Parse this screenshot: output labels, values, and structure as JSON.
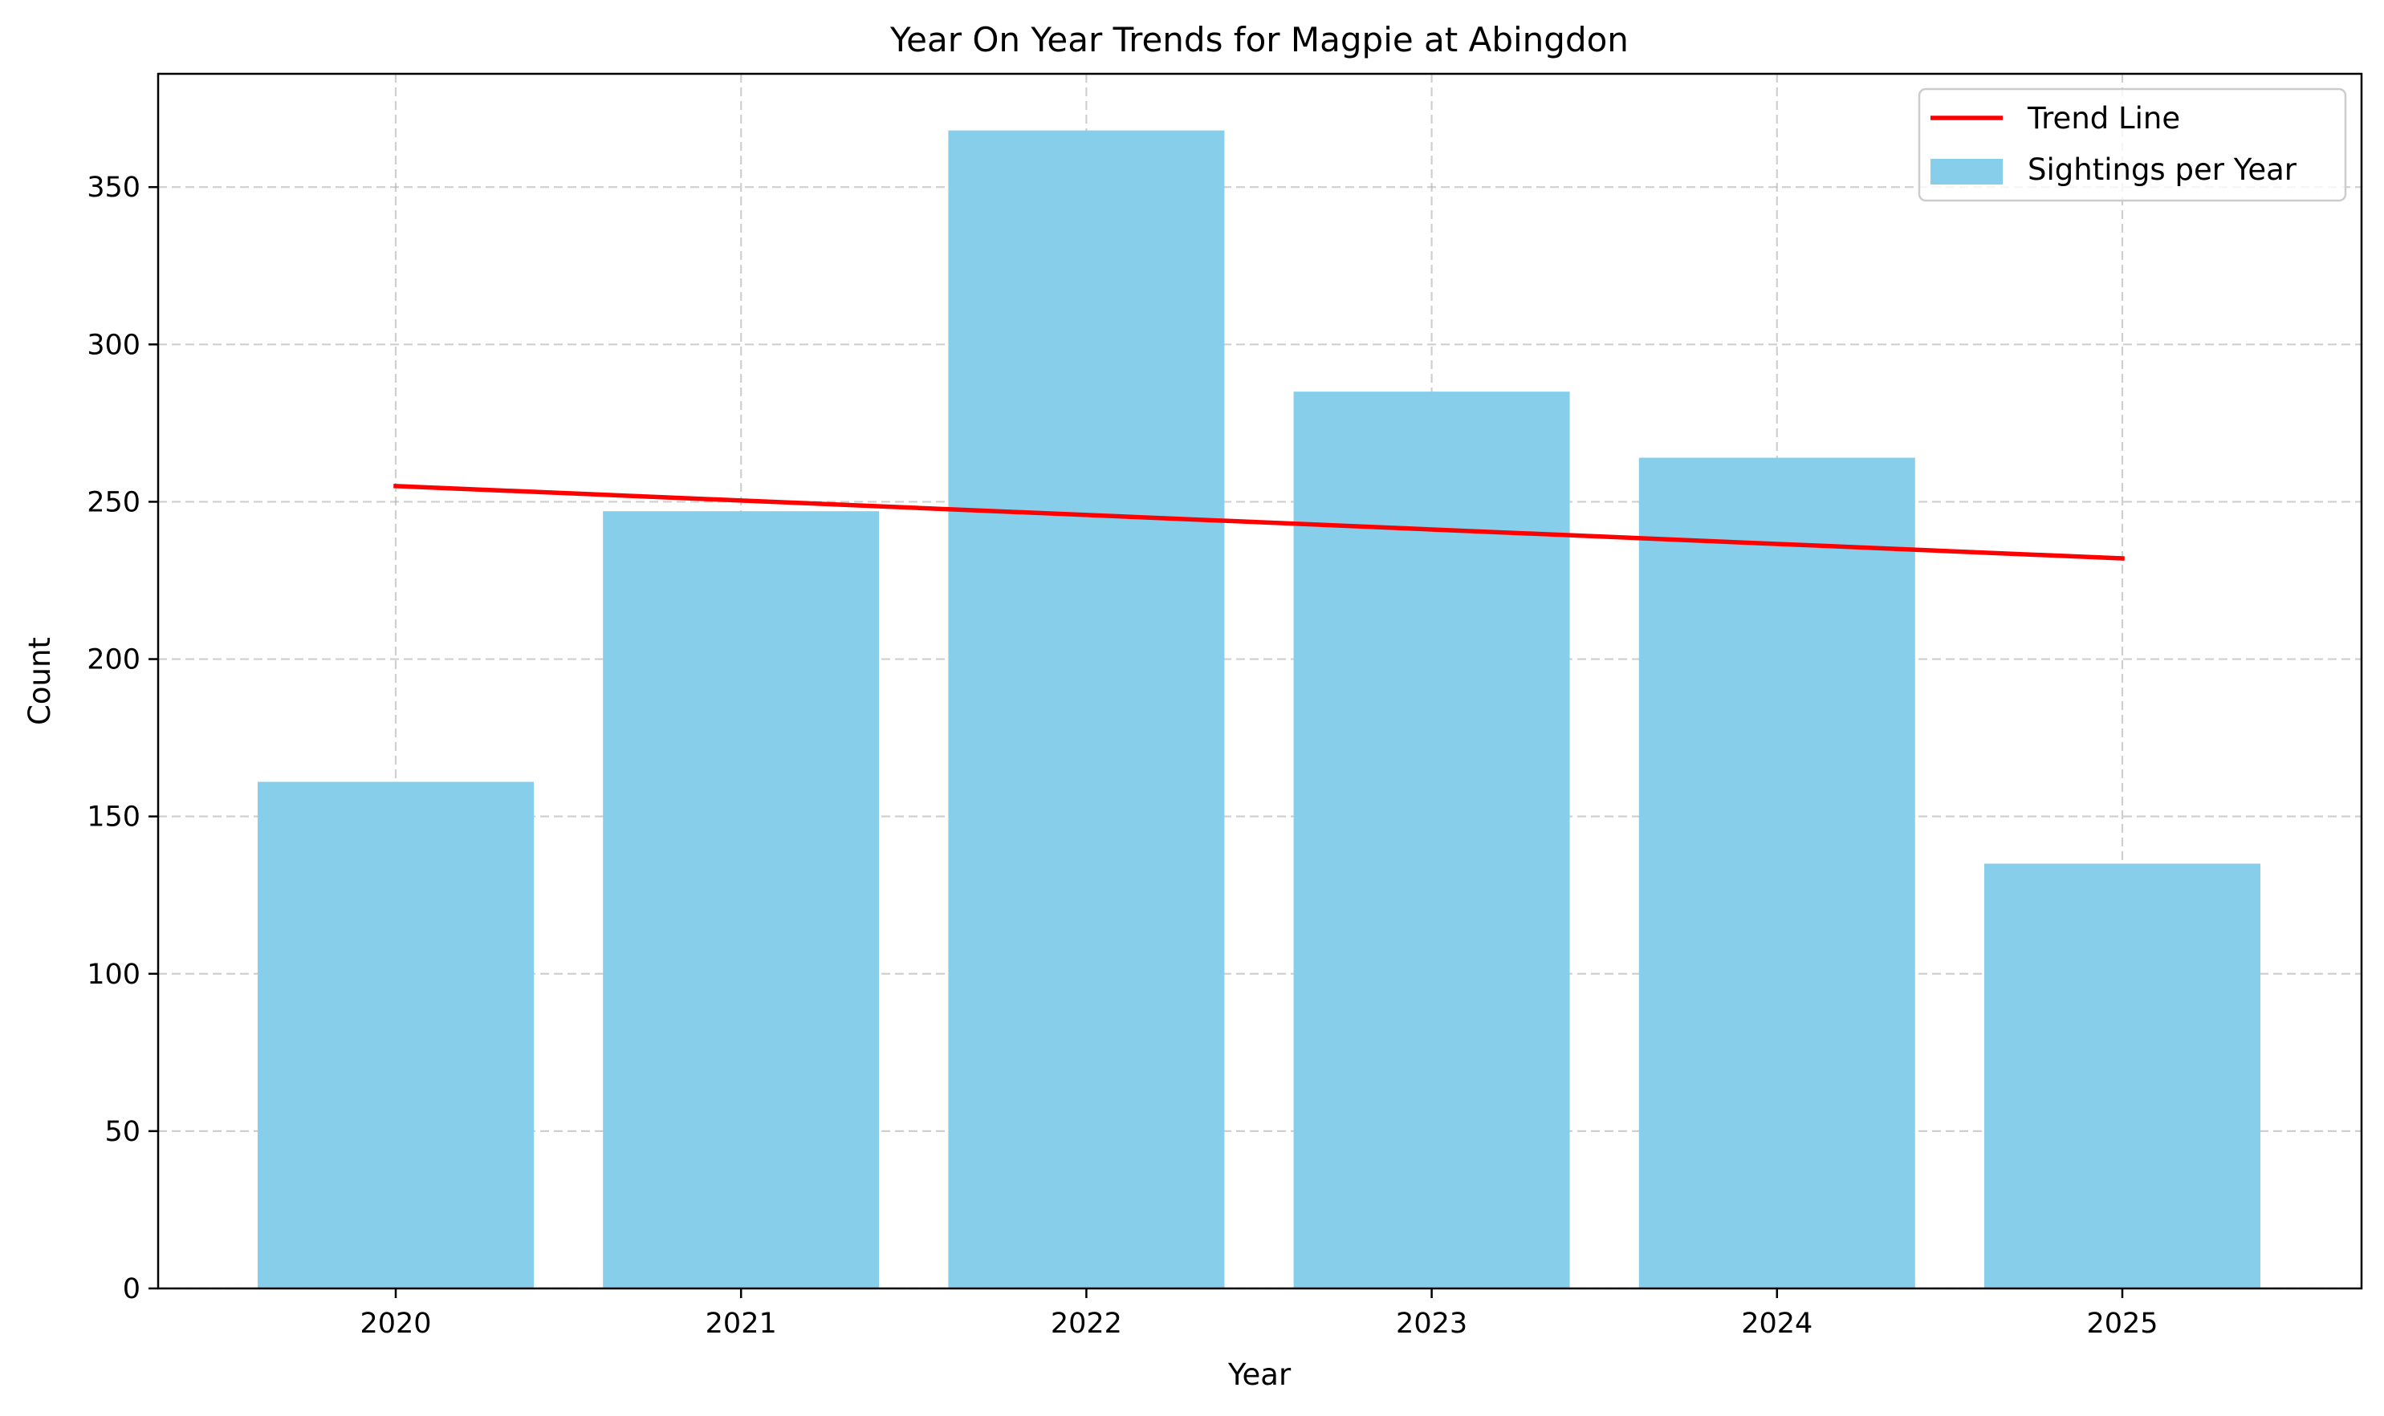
{
  "chart_data": {
    "type": "bar",
    "title": "Year On Year Trends for Magpie at Abingdon",
    "xlabel": "Year",
    "ylabel": "Count",
    "categories": [
      "2020",
      "2021",
      "2022",
      "2023",
      "2024",
      "2025"
    ],
    "series": [
      {
        "name": "Sightings per Year",
        "type": "bar",
        "values": [
          161,
          247,
          368,
          285,
          264,
          135
        ],
        "color": "#87CEEB"
      },
      {
        "name": "Trend Line",
        "type": "line",
        "values": [
          255,
          250.4,
          245.8,
          241.2,
          236.6,
          232
        ],
        "color": "#FF0000"
      }
    ],
    "yticks": [
      0,
      50,
      100,
      150,
      200,
      250,
      300,
      350
    ],
    "ylim": [
      0,
      386
    ],
    "grid": true,
    "legend": "top-right"
  }
}
